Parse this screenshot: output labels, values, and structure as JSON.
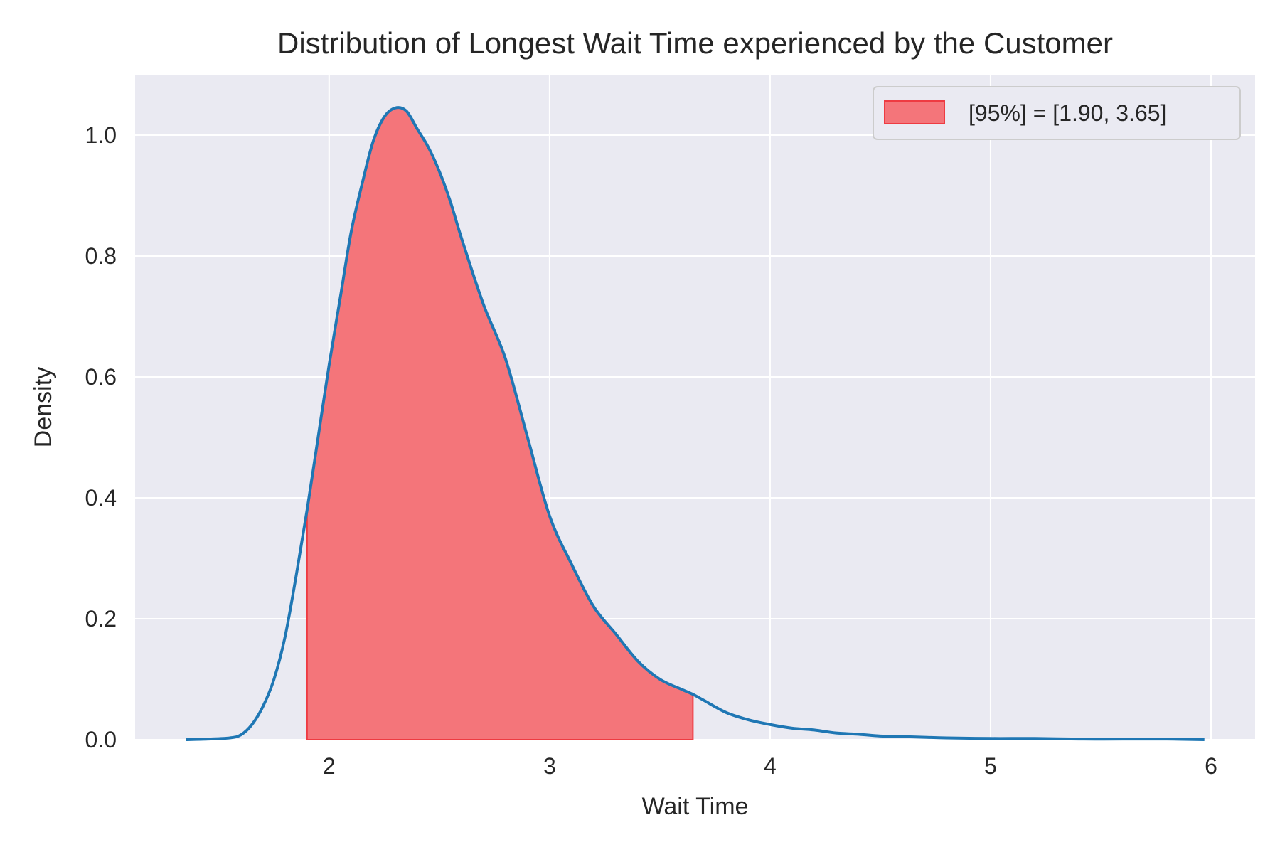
{
  "chart_data": {
    "type": "area",
    "title": "Distribution of Longest Wait Time experienced by the Customer",
    "xlabel": "Wait Time",
    "ylabel": "Density",
    "xlim": [
      1.12,
      6.2
    ],
    "ylim": [
      0,
      1.1
    ],
    "xticks": [
      2,
      3,
      4,
      5,
      6
    ],
    "xtick_labels": [
      "2",
      "3",
      "4",
      "5",
      "6"
    ],
    "yticks": [
      0,
      0.2,
      0.4,
      0.6,
      0.8,
      1.0
    ],
    "ytick_labels": [
      "0.0",
      "0.2",
      "0.4",
      "0.6",
      "0.8",
      "1.0"
    ],
    "grid": true,
    "legend_position": "top-right",
    "colors": {
      "background": "#eaeaf2",
      "grid": "#ffffff",
      "line": "#1f77b4",
      "fill": "#f4757a",
      "fill_edge": "#ee3b42"
    },
    "series": [
      {
        "name": "density",
        "kind": "line",
        "x": [
          1.35,
          1.45,
          1.55,
          1.6,
          1.65,
          1.7,
          1.75,
          1.8,
          1.85,
          1.9,
          1.95,
          2.0,
          2.05,
          2.1,
          2.15,
          2.2,
          2.25,
          2.3,
          2.35,
          2.4,
          2.45,
          2.5,
          2.55,
          2.6,
          2.7,
          2.8,
          2.9,
          3.0,
          3.1,
          3.2,
          3.3,
          3.4,
          3.5,
          3.6,
          3.65,
          3.7,
          3.8,
          3.9,
          4.0,
          4.1,
          4.2,
          4.3,
          4.4,
          4.5,
          4.6,
          4.7,
          4.8,
          5.0,
          5.2,
          5.4,
          5.6,
          5.8,
          5.97
        ],
        "y": [
          0.0,
          0.001,
          0.003,
          0.008,
          0.025,
          0.055,
          0.1,
          0.17,
          0.27,
          0.38,
          0.5,
          0.62,
          0.73,
          0.84,
          0.92,
          0.99,
          1.03,
          1.045,
          1.04,
          1.01,
          0.98,
          0.94,
          0.89,
          0.83,
          0.72,
          0.63,
          0.5,
          0.37,
          0.29,
          0.22,
          0.175,
          0.13,
          0.1,
          0.083,
          0.075,
          0.065,
          0.045,
          0.033,
          0.025,
          0.019,
          0.016,
          0.011,
          0.009,
          0.006,
          0.005,
          0.004,
          0.003,
          0.002,
          0.002,
          0.001,
          0.001,
          0.001,
          0.0
        ]
      },
      {
        "name": "[95%] = [1.90, 3.65]",
        "kind": "shaded_interval",
        "interval": [
          1.9,
          3.65
        ]
      }
    ]
  }
}
